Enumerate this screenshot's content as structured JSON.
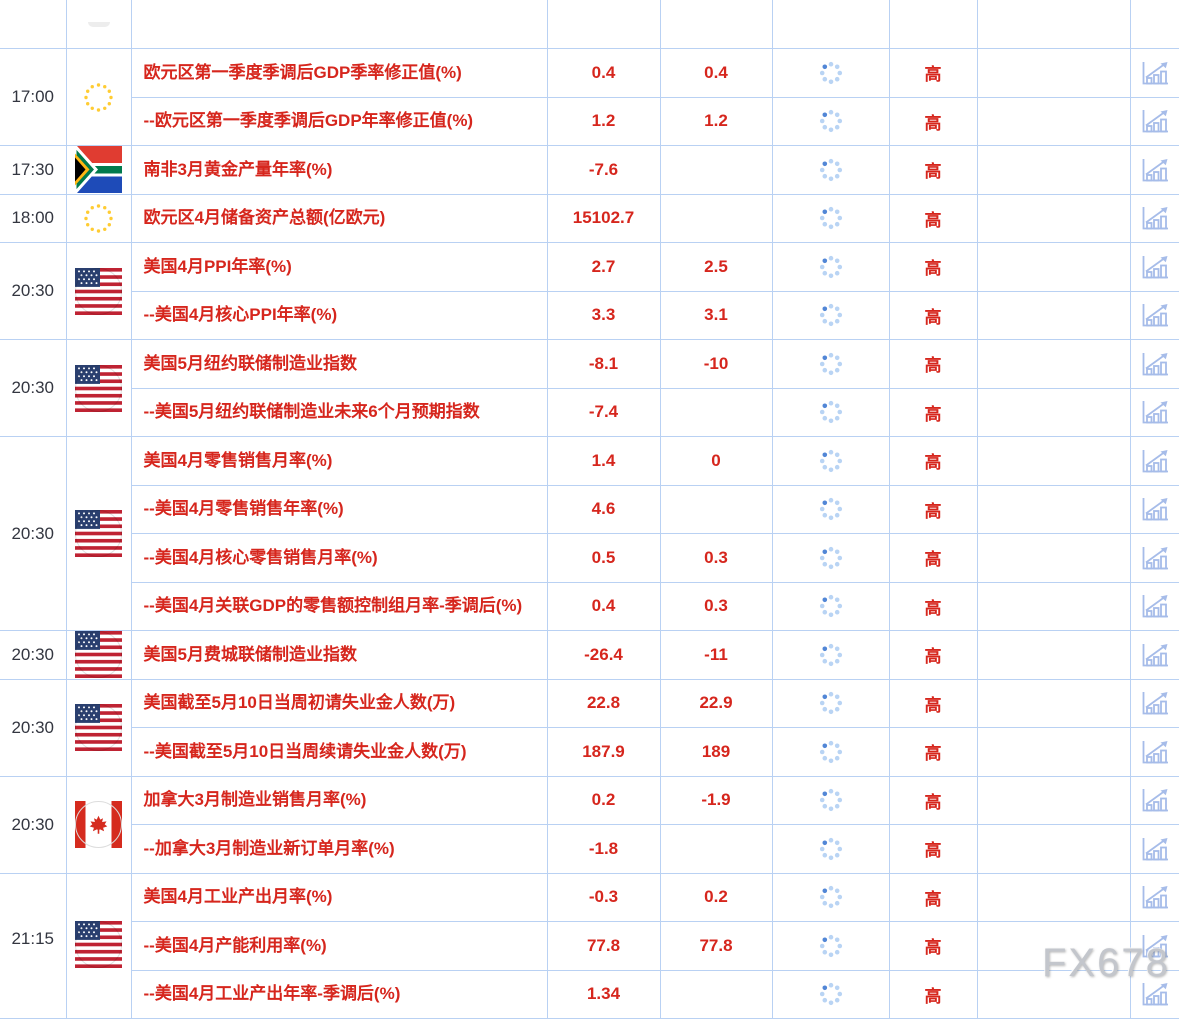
{
  "watermark": "FX678",
  "groups": [
    {
      "time": "17:00",
      "country": "eu",
      "rows": [
        {
          "event": "欧元区第一季度季调后GDP季率修正值(%)",
          "previous": "0.4",
          "forecast": "0.4",
          "actual_pending": true,
          "importance": "高"
        },
        {
          "event": "--欧元区第一季度季调后GDP年率修正值(%)",
          "previous": "1.2",
          "forecast": "1.2",
          "actual_pending": true,
          "importance": "高"
        }
      ]
    },
    {
      "time": "17:30",
      "country": "za",
      "rows": [
        {
          "event": "南非3月黄金产量年率(%)",
          "previous": "-7.6",
          "forecast": "",
          "actual_pending": true,
          "importance": "高"
        }
      ]
    },
    {
      "time": "18:00",
      "country": "eu",
      "rows": [
        {
          "event": "欧元区4月储备资产总额(亿欧元)",
          "previous": "15102.7",
          "forecast": "",
          "actual_pending": true,
          "importance": "高"
        }
      ]
    },
    {
      "time": "20:30",
      "country": "us",
      "rows": [
        {
          "event": "美国4月PPI年率(%)",
          "previous": "2.7",
          "forecast": "2.5",
          "actual_pending": true,
          "importance": "高"
        },
        {
          "event": "--美国4月核心PPI年率(%)",
          "previous": "3.3",
          "forecast": "3.1",
          "actual_pending": true,
          "importance": "高"
        }
      ]
    },
    {
      "time": "20:30",
      "country": "us",
      "rows": [
        {
          "event": "美国5月纽约联储制造业指数",
          "previous": "-8.1",
          "forecast": "-10",
          "actual_pending": true,
          "importance": "高"
        },
        {
          "event": "--美国5月纽约联储制造业未来6个月预期指数",
          "previous": "-7.4",
          "forecast": "",
          "actual_pending": true,
          "importance": "高"
        }
      ]
    },
    {
      "time": "20:30",
      "country": "us",
      "rows": [
        {
          "event": "美国4月零售销售月率(%)",
          "previous": "1.4",
          "forecast": "0",
          "actual_pending": true,
          "importance": "高"
        },
        {
          "event": "--美国4月零售销售年率(%)",
          "previous": "4.6",
          "forecast": "",
          "actual_pending": true,
          "importance": "高"
        },
        {
          "event": "--美国4月核心零售销售月率(%)",
          "previous": "0.5",
          "forecast": "0.3",
          "actual_pending": true,
          "importance": "高"
        },
        {
          "event": "--美国4月关联GDP的零售额控制组月率-季调后(%)",
          "previous": "0.4",
          "forecast": "0.3",
          "actual_pending": true,
          "importance": "高"
        }
      ]
    },
    {
      "time": "20:30",
      "country": "us",
      "rows": [
        {
          "event": "美国5月费城联储制造业指数",
          "previous": "-26.4",
          "forecast": "-11",
          "actual_pending": true,
          "importance": "高"
        }
      ]
    },
    {
      "time": "20:30",
      "country": "us",
      "rows": [
        {
          "event": "美国截至5月10日当周初请失业金人数(万)",
          "previous": "22.8",
          "forecast": "22.9",
          "actual_pending": true,
          "importance": "高"
        },
        {
          "event": "--美国截至5月10日当周续请失业金人数(万)",
          "previous": "187.9",
          "forecast": "189",
          "actual_pending": true,
          "importance": "高"
        }
      ]
    },
    {
      "time": "20:30",
      "country": "ca",
      "rows": [
        {
          "event": "加拿大3月制造业销售月率(%)",
          "previous": "0.2",
          "forecast": "-1.9",
          "actual_pending": true,
          "importance": "高"
        },
        {
          "event": "--加拿大3月制造业新订单月率(%)",
          "previous": "-1.8",
          "forecast": "",
          "actual_pending": true,
          "importance": "高"
        }
      ]
    },
    {
      "time": "21:15",
      "country": "us",
      "rows": [
        {
          "event": "美国4月工业产出月率(%)",
          "previous": "-0.3",
          "forecast": "0.2",
          "actual_pending": true,
          "importance": "高"
        },
        {
          "event": "--美国4月产能利用率(%)",
          "previous": "77.8",
          "forecast": "77.8",
          "actual_pending": true,
          "importance": "高"
        },
        {
          "event": "--美国4月工业产出年率-季调后(%)",
          "previous": "1.34",
          "forecast": "",
          "actual_pending": true,
          "importance": "高"
        }
      ]
    }
  ]
}
